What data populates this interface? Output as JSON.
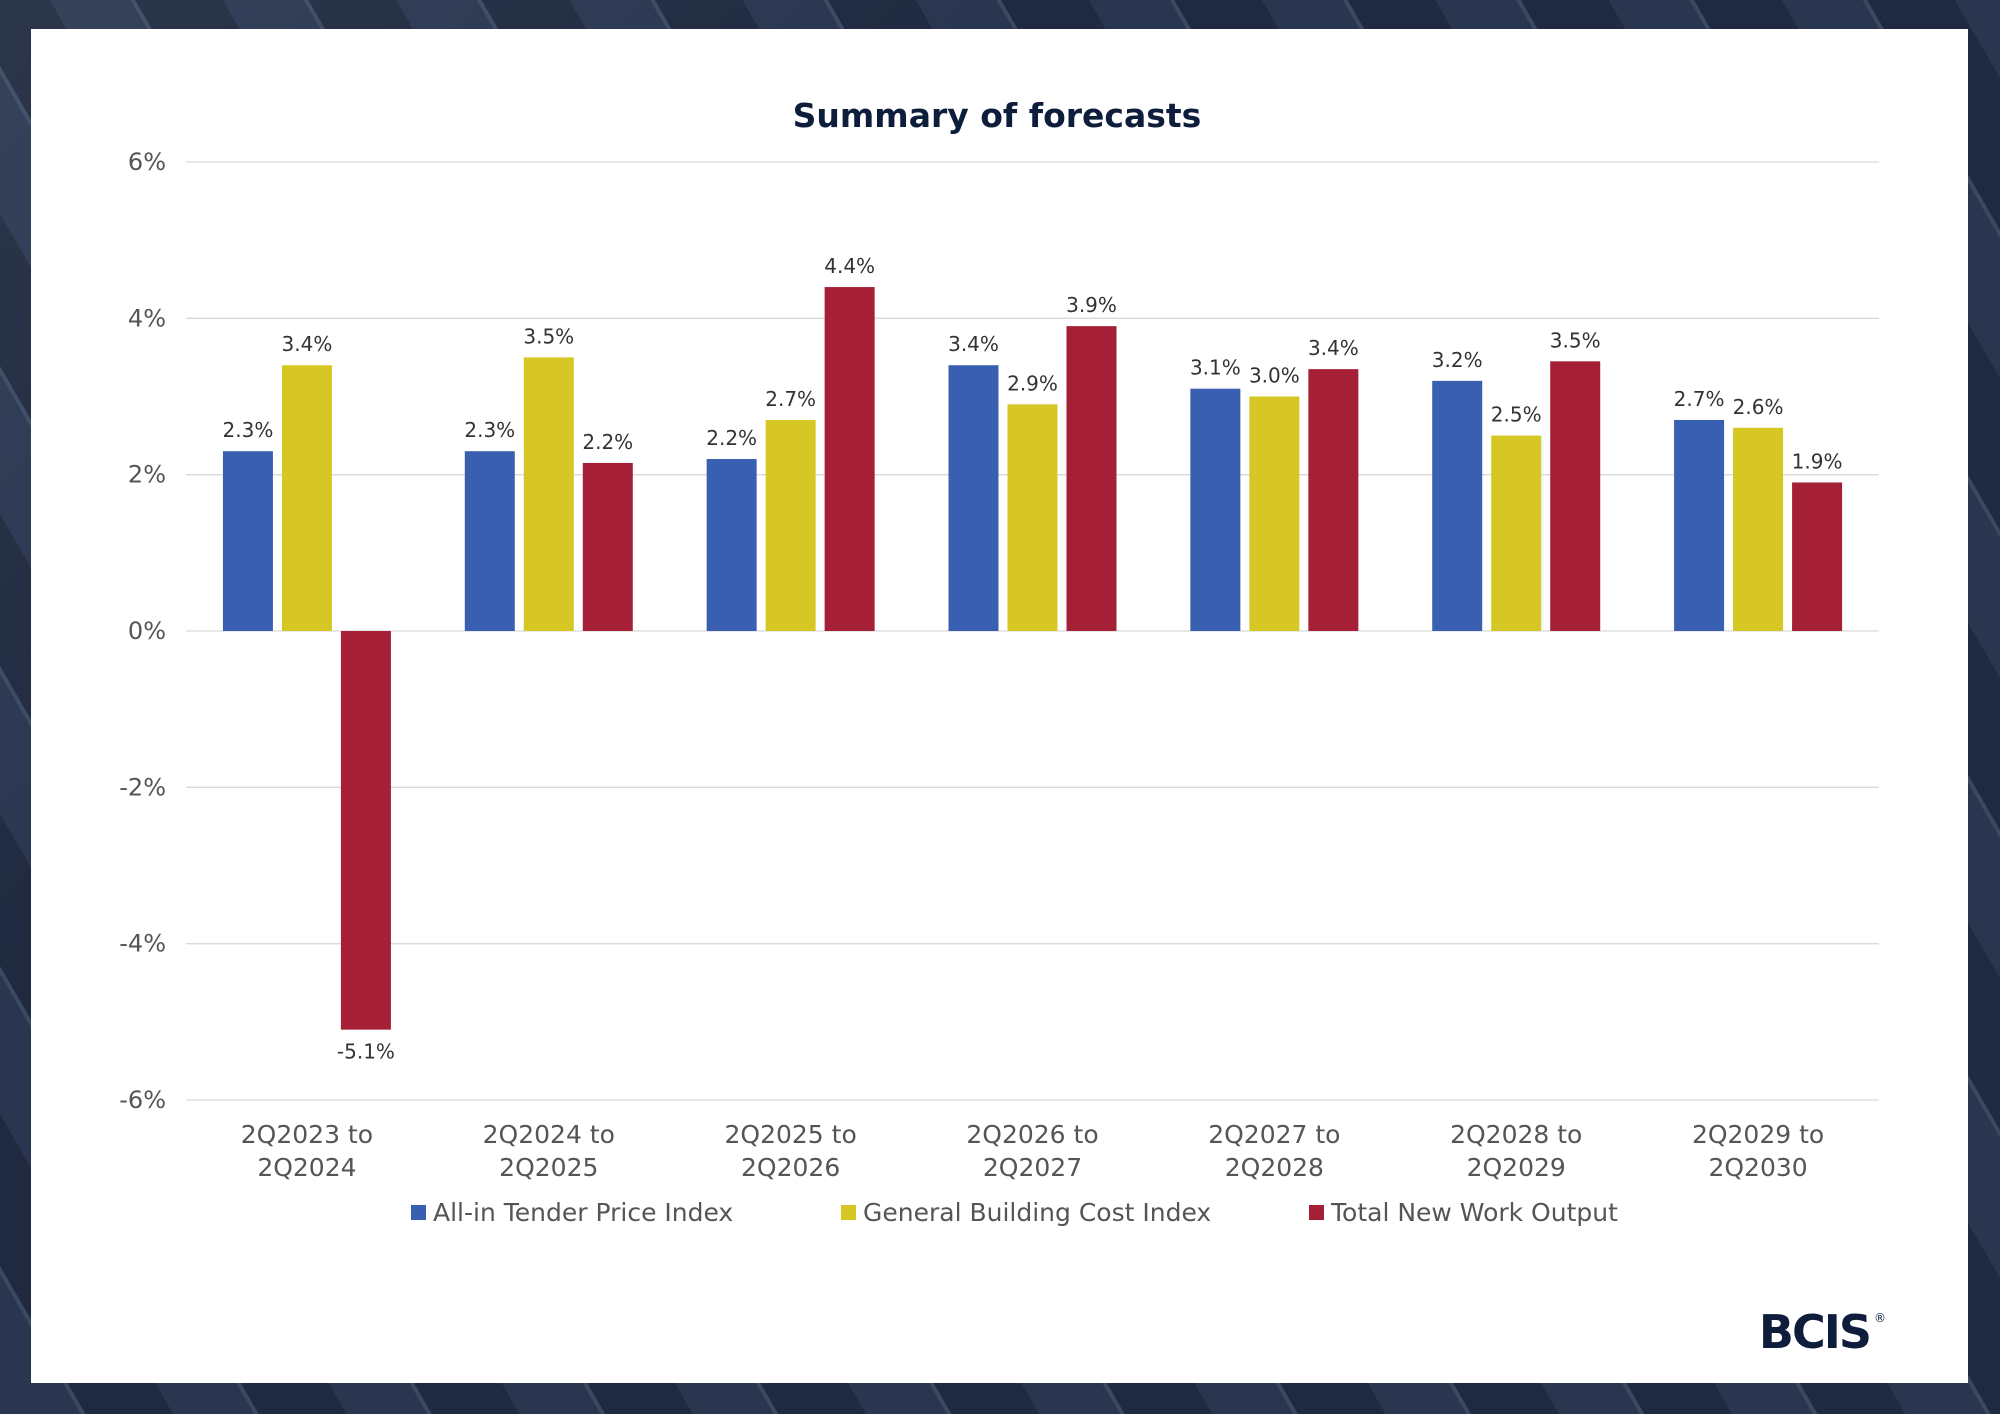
{
  "brand": {
    "logo_text": "BCIS",
    "registered_mark": "®"
  },
  "chart_data": {
    "type": "bar",
    "title": "Summary of forecasts",
    "xlabel": "",
    "ylabel": "",
    "ylim": [
      -6,
      6
    ],
    "yticks": [
      6,
      4,
      2,
      0,
      -2,
      -4,
      -6
    ],
    "ytick_labels": [
      "6%",
      "4%",
      "2%",
      "0%",
      "-2%",
      "-4%",
      "-6%"
    ],
    "grid": true,
    "legend_position": "bottom",
    "categories": [
      [
        "2Q2023 to",
        "2Q2024"
      ],
      [
        "2Q2024 to",
        "2Q2025"
      ],
      [
        "2Q2025 to",
        "2Q2026"
      ],
      [
        "2Q2026 to",
        "2Q2027"
      ],
      [
        "2Q2027 to",
        "2Q2028"
      ],
      [
        "2Q2028 to",
        "2Q2029"
      ],
      [
        "2Q2029 to",
        "2Q2030"
      ]
    ],
    "series": [
      {
        "name": "All-in Tender Price Index",
        "color": "#385fb0",
        "values": [
          2.3,
          2.3,
          2.2,
          3.4,
          3.1,
          3.2,
          2.7
        ],
        "labels": [
          "2.3%",
          "2.3%",
          "2.2%",
          "3.4%",
          "3.1%",
          "3.2%",
          "2.7%"
        ]
      },
      {
        "name": "General Building Cost Index",
        "color": "#d6c724",
        "values": [
          3.4,
          3.5,
          2.7,
          2.9,
          3.0,
          2.5,
          2.6
        ],
        "labels": [
          "3.4%",
          "3.5%",
          "2.7%",
          "2.9%",
          "3.0%",
          "2.5%",
          "2.6%"
        ]
      },
      {
        "name": "Total New Work Output",
        "color": "#a51f36",
        "values": [
          -5.1,
          2.15,
          4.4,
          3.9,
          3.35,
          3.45,
          1.9
        ],
        "labels": [
          "-5.1%",
          "2.2%",
          "4.4%",
          "3.9%",
          "3.4%",
          "3.5%",
          "1.9%"
        ]
      }
    ]
  }
}
